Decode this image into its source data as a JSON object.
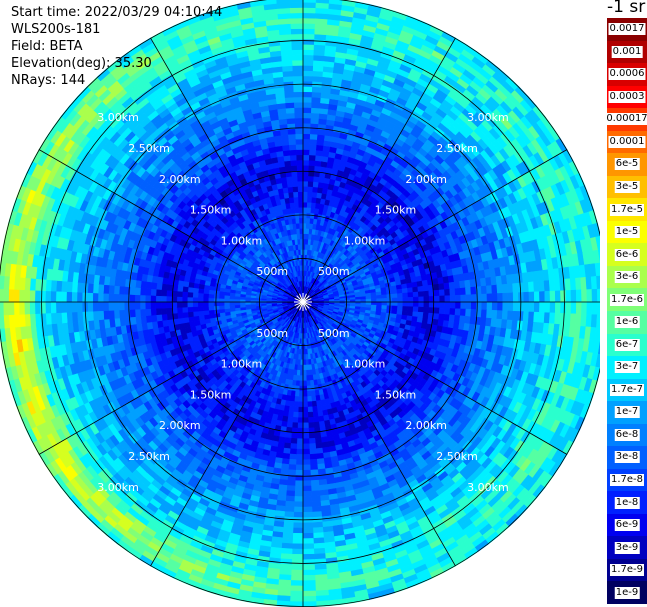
{
  "info": {
    "start_time": "Start time: 2022/03/29 04:10:44",
    "device": "WLS200s-181",
    "field": "Field: BETA",
    "elevation": "Elevation(deg): 35.30",
    "nrays": "NRays: 144"
  },
  "legend": {
    "title": "-1 sr",
    "entries": [
      {
        "label": "0.0017",
        "color": "#8b0000"
      },
      {
        "label": "0.001",
        "color": "#b00000"
      },
      {
        "label": "0.0006",
        "color": "#d80000"
      },
      {
        "label": "0.0003",
        "color": "#ff0000"
      },
      {
        "label": "0.00017",
        "color": "#ff3a00"
      },
      {
        "label": "0.0001",
        "color": "#ff6a00"
      },
      {
        "label": "6e-5",
        "color": "#ff9600"
      },
      {
        "label": "3e-5",
        "color": "#ffbf00"
      },
      {
        "label": "1.7e-5",
        "color": "#ffe600"
      },
      {
        "label": "1e-5",
        "color": "#fcff00"
      },
      {
        "label": "6e-6",
        "color": "#d6ff1f"
      },
      {
        "label": "3e-6",
        "color": "#aaff4c"
      },
      {
        "label": "1.7e-6",
        "color": "#80ff77"
      },
      {
        "label": "1e-6",
        "color": "#55ffa2"
      },
      {
        "label": "6e-7",
        "color": "#2affcd"
      },
      {
        "label": "3e-7",
        "color": "#00f0ff"
      },
      {
        "label": "1.7e-7",
        "color": "#00c8ff"
      },
      {
        "label": "1e-7",
        "color": "#00a0ff"
      },
      {
        "label": "6e-8",
        "color": "#0080ff"
      },
      {
        "label": "3e-8",
        "color": "#0060ff"
      },
      {
        "label": "1.7e-8",
        "color": "#0040ff"
      },
      {
        "label": "1e-8",
        "color": "#0020ff"
      },
      {
        "label": "6e-9",
        "color": "#0000f0"
      },
      {
        "label": "3e-9",
        "color": "#0000c0"
      },
      {
        "label": "1.7e-9",
        "color": "#000090"
      },
      {
        "label": "1e-9",
        "color": "#000060"
      }
    ]
  },
  "chart_data": {
    "type": "heatmap",
    "projection": "polar",
    "field": "BETA",
    "n_rays": 144,
    "elevation_deg": 35.3,
    "range_max_km": 3.5,
    "range_rings_km": [
      0.5,
      1.0,
      1.5,
      2.0,
      2.5,
      3.0
    ],
    "range_ring_labels": [
      "500m",
      "1.00km",
      "1.50km",
      "2.00km",
      "2.50km",
      "3.00km"
    ],
    "spokes_deg": [
      0,
      30,
      60,
      90,
      120,
      150,
      180,
      210,
      240,
      270,
      300,
      330
    ],
    "color_scale": "log",
    "range_profile_log10": [
      [
        0.0,
        -8.5
      ],
      [
        0.35,
        -7.7
      ],
      [
        0.8,
        -7.5
      ],
      [
        1.2,
        -8.0
      ],
      [
        1.55,
        -8.2
      ],
      [
        1.9,
        -7.6
      ],
      [
        2.3,
        -7.2
      ],
      [
        2.6,
        -6.9
      ],
      [
        2.9,
        -6.6
      ],
      [
        3.2,
        -6.3
      ],
      [
        3.5,
        -6.6
      ]
    ],
    "aerosol_band": {
      "azimuth_center_deg": 260,
      "azimuth_halfwidth_deg": 95,
      "range_km": 3.3,
      "peak_log10": -4.8
    },
    "grid": true
  }
}
